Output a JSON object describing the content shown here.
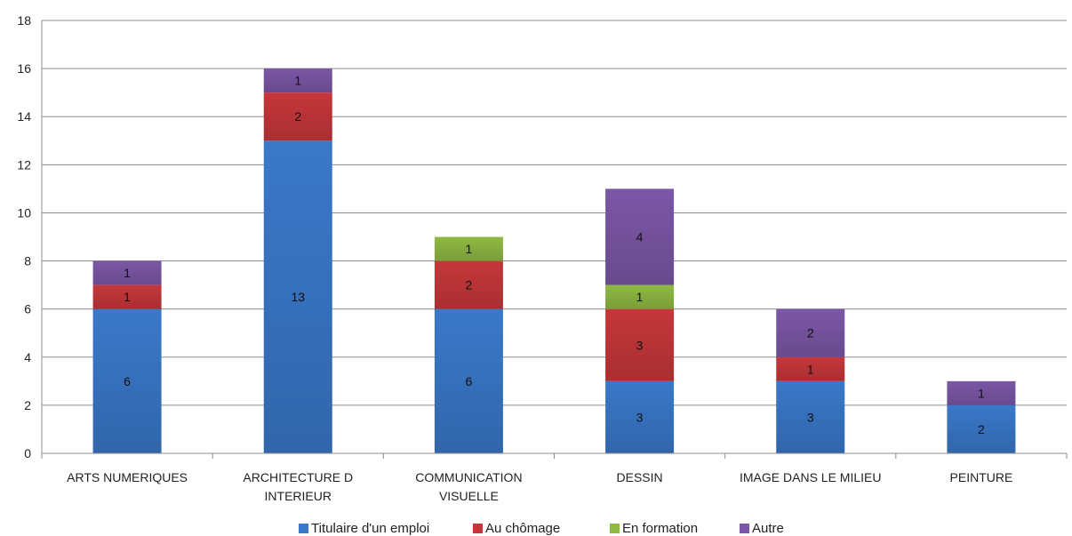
{
  "chart_data": {
    "type": "bar",
    "stacked": true,
    "title": "",
    "xlabel": "",
    "ylabel": "",
    "ylim": [
      0,
      18
    ],
    "yticks": [
      0,
      2,
      4,
      6,
      8,
      10,
      12,
      14,
      16,
      18
    ],
    "grid": true,
    "legend_position": "bottom",
    "categories": [
      [
        "ARTS NUMERIQUES"
      ],
      [
        "ARCHITECTURE D",
        "INTERIEUR"
      ],
      [
        "COMMUNICATION",
        "VISUELLE"
      ],
      [
        "DESSIN"
      ],
      [
        "IMAGE DANS LE MILIEU"
      ],
      [
        "PEINTURE"
      ]
    ],
    "series": [
      {
        "name": "Titulaire  d'un emploi",
        "color": "#3a78c9",
        "values": [
          6,
          13,
          6,
          3,
          3,
          2
        ]
      },
      {
        "name": "Au chômage",
        "color": "#c6373a",
        "values": [
          1,
          2,
          2,
          3,
          1,
          0
        ]
      },
      {
        "name": "En formation",
        "color": "#8fb943",
        "values": [
          0,
          0,
          1,
          1,
          0,
          0
        ]
      },
      {
        "name": "Autre",
        "color": "#7b57a6",
        "values": [
          1,
          1,
          0,
          4,
          2,
          1
        ]
      }
    ]
  }
}
